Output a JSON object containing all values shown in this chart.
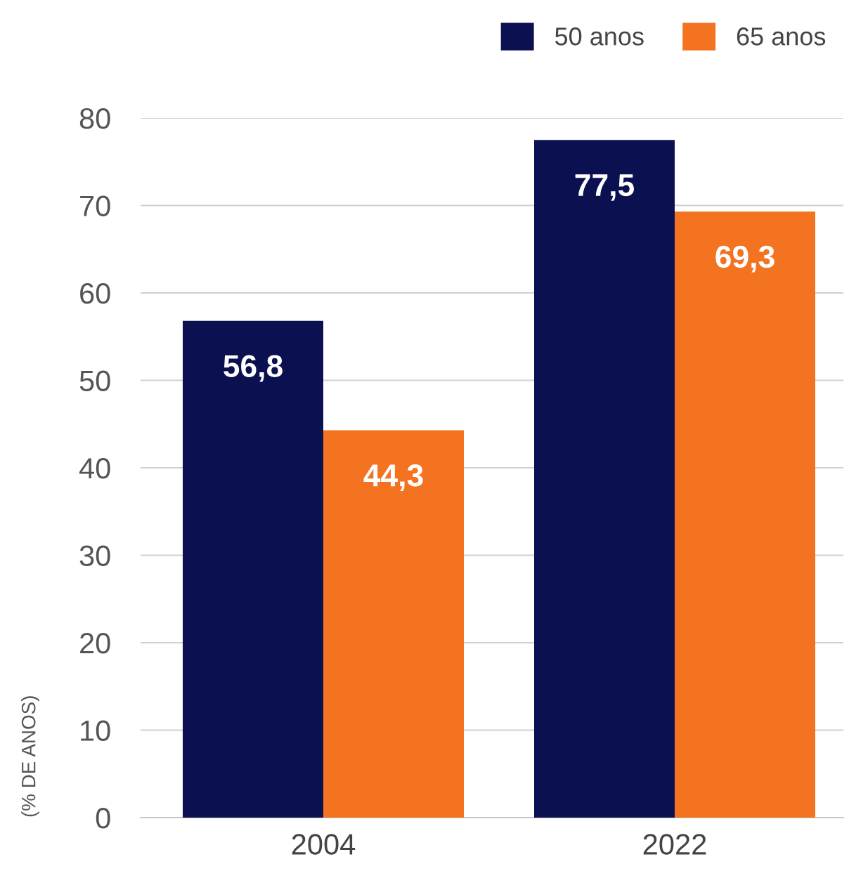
{
  "chart_data": {
    "type": "bar",
    "ylabel": "(% DE ANOS)",
    "categories": [
      "2004",
      "2022"
    ],
    "series": [
      {
        "name": "50 anos",
        "color": "#0b1150",
        "values": [
          56.8,
          77.5
        ],
        "value_labels": [
          "56,8",
          "77,5"
        ]
      },
      {
        "name": "65 anos",
        "color": "#f47321",
        "values": [
          44.3,
          69.3
        ],
        "value_labels": [
          "44,3",
          "69,3"
        ]
      }
    ],
    "ylim": [
      0,
      80
    ],
    "yticks": [
      0,
      10,
      20,
      30,
      40,
      50,
      60,
      70,
      80
    ],
    "grid": "y",
    "legend": "top right"
  }
}
